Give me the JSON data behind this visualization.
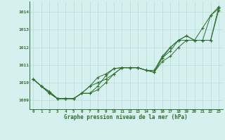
{
  "x": [
    0,
    1,
    2,
    3,
    4,
    5,
    6,
    7,
    8,
    9,
    10,
    11,
    12,
    13,
    14,
    15,
    16,
    17,
    18,
    19,
    20,
    21,
    22,
    23
  ],
  "series1": [
    1010.2,
    1009.8,
    1009.4,
    1009.1,
    1009.1,
    1009.1,
    1009.4,
    1009.4,
    1009.8,
    1010.4,
    1010.8,
    1010.85,
    1010.85,
    1010.85,
    1010.7,
    1010.7,
    1011.5,
    1012.0,
    1012.4,
    1012.65,
    1012.4,
    1013.1,
    1013.8,
    1014.2
  ],
  "series2": [
    1010.2,
    1009.8,
    1009.4,
    1009.1,
    1009.1,
    1009.1,
    1009.4,
    1009.8,
    1010.3,
    1010.5,
    1010.8,
    1010.85,
    1010.85,
    1010.85,
    1010.7,
    1010.6,
    1011.4,
    1012.0,
    1012.4,
    1012.65,
    1012.4,
    1012.4,
    1013.8,
    1014.3
  ],
  "series3": [
    1010.2,
    1009.8,
    1009.5,
    1009.1,
    1009.1,
    1009.1,
    1009.4,
    1009.8,
    1010.0,
    1010.2,
    1010.5,
    1010.85,
    1010.85,
    1010.85,
    1010.7,
    1010.6,
    1011.4,
    1011.8,
    1012.4,
    1012.4,
    1012.4,
    1012.4,
    1012.4,
    1014.3
  ],
  "series4": [
    1010.2,
    1009.8,
    1009.5,
    1009.1,
    1009.1,
    1009.1,
    1009.4,
    1009.4,
    1009.6,
    1010.0,
    1010.5,
    1010.85,
    1010.85,
    1010.85,
    1010.7,
    1010.6,
    1011.2,
    1011.5,
    1012.0,
    1012.4,
    1012.4,
    1012.4,
    1012.4,
    1014.1
  ],
  "line_color": "#2d6e2d",
  "bg_color": "#d6f0f0",
  "grid_color": "#b8dada",
  "ylabel_values": [
    1009,
    1010,
    1011,
    1012,
    1013,
    1014
  ],
  "xlabel_values": [
    0,
    1,
    2,
    3,
    4,
    5,
    6,
    7,
    8,
    9,
    10,
    11,
    12,
    13,
    14,
    15,
    16,
    17,
    18,
    19,
    20,
    21,
    22,
    23
  ],
  "title": "Graphe pression niveau de la mer (hPa)",
  "ylim": [
    1008.5,
    1014.6
  ],
  "xlim": [
    -0.5,
    23.5
  ]
}
